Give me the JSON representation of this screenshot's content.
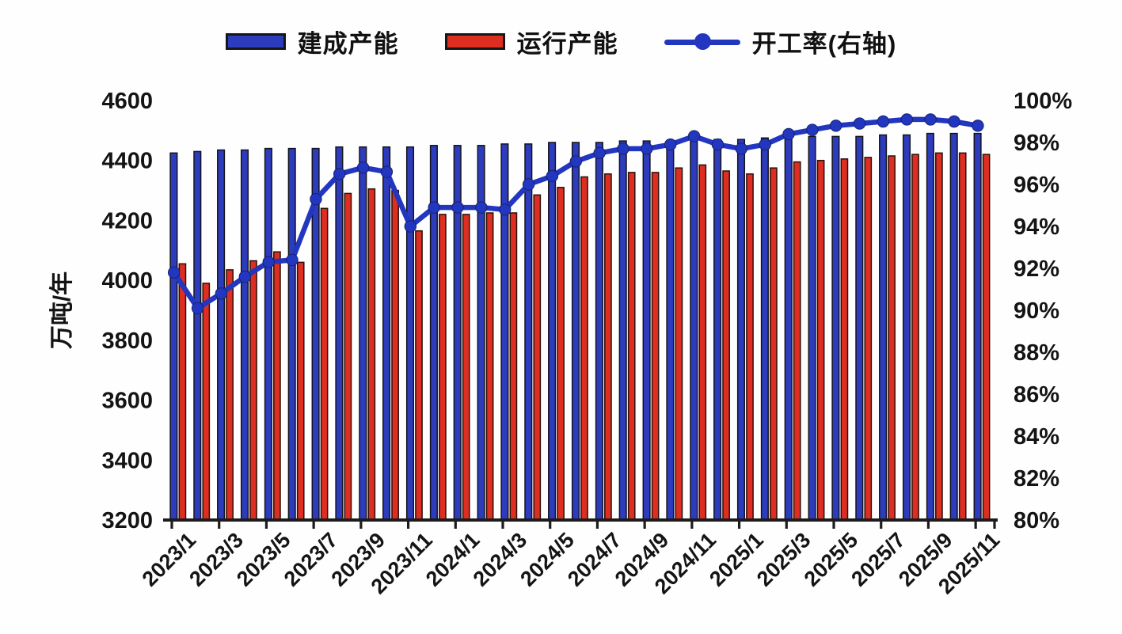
{
  "chart_data": {
    "type": "bar",
    "subtype": "grouped-bar-with-line-combo",
    "title": "",
    "background": "#ffffff",
    "grid": false,
    "legend_position": "top",
    "categories": [
      "2023/1",
      "2023/2",
      "2023/3",
      "2023/4",
      "2023/5",
      "2023/6",
      "2023/7",
      "2023/8",
      "2023/9",
      "2023/10",
      "2023/11",
      "2023/12",
      "2024/1",
      "2024/2",
      "2024/3",
      "2024/4",
      "2024/5",
      "2024/6",
      "2024/7",
      "2024/8",
      "2024/9",
      "2024/10",
      "2024/11",
      "2024/12",
      "2025/1",
      "2025/2",
      "2025/3",
      "2025/4",
      "2025/5",
      "2025/6",
      "2025/7",
      "2025/8",
      "2025/9",
      "2025/10",
      "2025/11"
    ],
    "x_tick_labels": [
      "2023/1",
      "2023/3",
      "2023/5",
      "2023/7",
      "2023/9",
      "2023/11",
      "2024/1",
      "2024/3",
      "2024/5",
      "2024/7",
      "2024/9",
      "2024/11",
      "2025/1",
      "2025/3",
      "2025/5",
      "2025/7",
      "2025/9",
      "2025/11"
    ],
    "series": [
      {
        "name": "建成产能",
        "type": "bar",
        "axis": "left",
        "color": "#2d3bbd",
        "values": [
          4425,
          4430,
          4435,
          4435,
          4440,
          4440,
          4440,
          4445,
          4445,
          4445,
          4445,
          4450,
          4450,
          4450,
          4455,
          4455,
          4460,
          4460,
          4460,
          4465,
          4465,
          4465,
          4470,
          4470,
          4470,
          4475,
          4475,
          4480,
          4480,
          4480,
          4485,
          4485,
          4490,
          4490,
          4490
        ]
      },
      {
        "name": "运行产能",
        "type": "bar",
        "axis": "left",
        "color": "#dd2e21",
        "values": [
          4055,
          3990,
          4035,
          4065,
          4095,
          4060,
          4240,
          4290,
          4305,
          4300,
          4165,
          4220,
          4220,
          4225,
          4225,
          4285,
          4310,
          4345,
          4355,
          4360,
          4360,
          4375,
          4385,
          4365,
          4355,
          4375,
          4395,
          4400,
          4405,
          4410,
          4415,
          4420,
          4425,
          4425,
          4420
        ]
      },
      {
        "name": "开工率(右轴)",
        "type": "line",
        "axis": "right",
        "color": "#2236c0",
        "values": [
          91.8,
          90.1,
          90.8,
          91.6,
          92.3,
          92.4,
          95.3,
          96.5,
          96.8,
          96.6,
          94.0,
          94.9,
          94.9,
          94.9,
          94.8,
          96.0,
          96.4,
          97.1,
          97.5,
          97.7,
          97.7,
          97.9,
          98.3,
          97.9,
          97.7,
          97.9,
          98.4,
          98.6,
          98.8,
          98.9,
          99.0,
          99.1,
          99.1,
          99.0,
          98.8
        ]
      }
    ],
    "left_axis": {
      "title": "万吨/年",
      "min": 3200,
      "max": 4600,
      "tick_step": 200,
      "tick_labels": [
        "4600",
        "4400",
        "4200",
        "4000",
        "3800",
        "3600",
        "3400",
        "3200"
      ]
    },
    "right_axis": {
      "title": "",
      "min": 80,
      "max": 100,
      "tick_step": 2,
      "unit": "%",
      "tick_labels": [
        "100%",
        "98%",
        "96%",
        "94%",
        "92%",
        "90%",
        "88%",
        "86%",
        "84%",
        "82%",
        "80%"
      ]
    }
  }
}
